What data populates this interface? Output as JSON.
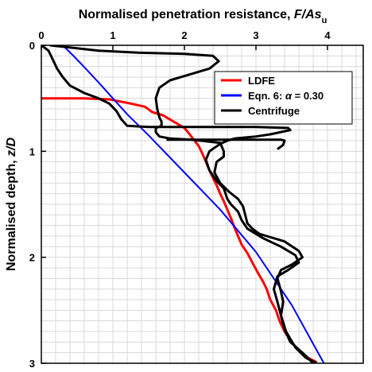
{
  "chart_data": {
    "type": "line",
    "title": "Normalised penetration resistance, F/As",
    "title_subscript": "u",
    "xlabel": "Normalised penetration resistance, F/As",
    "xlabel_subscript": "u",
    "ylabel": "Normalised depth, z/D",
    "x_axis_position": "top",
    "y_axis_inverted": true,
    "xlim": [
      0,
      4.5
    ],
    "ylim": [
      0,
      3
    ],
    "x_ticks": [
      0,
      1,
      2,
      3,
      4
    ],
    "y_ticks": [
      0,
      1,
      2,
      3
    ],
    "grid": true,
    "legend_placement": "top-right",
    "series": [
      {
        "name": "LDFE",
        "color": "#ff0000",
        "points": [
          [
            0.0,
            0.5
          ],
          [
            0.6,
            0.5
          ],
          [
            0.95,
            0.51
          ],
          [
            1.25,
            0.55
          ],
          [
            1.45,
            0.58
          ],
          [
            1.55,
            0.63
          ],
          [
            1.7,
            0.66
          ],
          [
            1.8,
            0.7
          ],
          [
            1.9,
            0.74
          ],
          [
            2.0,
            0.78
          ],
          [
            2.05,
            0.82
          ],
          [
            2.12,
            0.88
          ],
          [
            2.2,
            0.95
          ],
          [
            2.25,
            1.02
          ],
          [
            2.3,
            1.1
          ],
          [
            2.35,
            1.18
          ],
          [
            2.4,
            1.25
          ],
          [
            2.45,
            1.32
          ],
          [
            2.5,
            1.4
          ],
          [
            2.55,
            1.47
          ],
          [
            2.6,
            1.55
          ],
          [
            2.65,
            1.63
          ],
          [
            2.7,
            1.72
          ],
          [
            2.75,
            1.8
          ],
          [
            2.8,
            1.88
          ],
          [
            2.88,
            1.96
          ],
          [
            2.95,
            2.05
          ],
          [
            3.03,
            2.15
          ],
          [
            3.1,
            2.23
          ],
          [
            3.15,
            2.3
          ],
          [
            3.2,
            2.4
          ],
          [
            3.28,
            2.5
          ],
          [
            3.33,
            2.6
          ],
          [
            3.4,
            2.7
          ],
          [
            3.5,
            2.8
          ],
          [
            3.6,
            2.88
          ],
          [
            3.73,
            2.95
          ],
          [
            3.85,
            2.99
          ]
        ]
      },
      {
        "name": "Eqn. 6: α = 0.30",
        "label_var": "α",
        "label_prefix": "Eqn. 6: ",
        "label_suffix": " = 0.30",
        "color": "#0000ff",
        "points": [
          [
            0.3,
            0.0
          ],
          [
            0.45,
            0.1
          ],
          [
            0.62,
            0.22
          ],
          [
            0.8,
            0.35
          ],
          [
            1.0,
            0.5
          ],
          [
            1.2,
            0.65
          ],
          [
            1.5,
            0.85
          ],
          [
            2.0,
            1.2
          ],
          [
            2.5,
            1.55
          ],
          [
            3.0,
            1.95
          ],
          [
            3.5,
            2.45
          ],
          [
            3.95,
            3.0
          ]
        ]
      },
      {
        "name": "Centrifuge",
        "color": "#000000",
        "points": [
          [
            0.12,
            0.0
          ],
          [
            0.4,
            0.02
          ],
          [
            0.8,
            0.05
          ],
          [
            1.35,
            0.07
          ],
          [
            2.0,
            0.08
          ],
          [
            2.4,
            0.1
          ],
          [
            2.48,
            0.15
          ],
          [
            2.35,
            0.22
          ],
          [
            2.05,
            0.28
          ],
          [
            1.8,
            0.33
          ],
          [
            1.65,
            0.4
          ],
          [
            1.6,
            0.5
          ],
          [
            1.62,
            0.6
          ],
          [
            1.65,
            0.68
          ],
          [
            1.68,
            0.72
          ],
          [
            1.68,
            0.76
          ],
          [
            1.6,
            0.78
          ],
          [
            1.6,
            0.82
          ],
          [
            1.65,
            0.86
          ],
          [
            1.8,
            0.88
          ],
          [
            2.1,
            0.89
          ],
          [
            2.5,
            0.92
          ],
          [
            2.55,
            1.0
          ],
          [
            2.55,
            1.05
          ],
          [
            2.45,
            1.1
          ],
          [
            2.42,
            1.2
          ],
          [
            2.5,
            1.3
          ],
          [
            2.62,
            1.38
          ],
          [
            2.75,
            1.45
          ],
          [
            2.82,
            1.52
          ],
          [
            2.85,
            1.6
          ],
          [
            2.88,
            1.68
          ],
          [
            2.95,
            1.73
          ],
          [
            3.05,
            1.78
          ],
          [
            3.15,
            1.8
          ],
          [
            3.4,
            1.85
          ],
          [
            3.6,
            1.94
          ],
          [
            3.65,
            2.0
          ],
          [
            3.5,
            2.07
          ],
          [
            3.35,
            2.12
          ],
          [
            3.3,
            2.2
          ],
          [
            3.35,
            2.32
          ],
          [
            3.38,
            2.42
          ],
          [
            3.35,
            2.55
          ],
          [
            3.4,
            2.68
          ],
          [
            3.48,
            2.8
          ],
          [
            3.65,
            2.9
          ],
          [
            3.8,
            3.0
          ]
        ]
      },
      {
        "name": "",
        "color": "#000000",
        "points": [
          [
            0.0,
            0.0
          ],
          [
            0.1,
            0.05
          ],
          [
            0.15,
            0.12
          ],
          [
            0.22,
            0.22
          ],
          [
            0.3,
            0.3
          ],
          [
            0.4,
            0.38
          ],
          [
            0.6,
            0.45
          ],
          [
            0.8,
            0.5
          ],
          [
            0.95,
            0.55
          ],
          [
            1.05,
            0.62
          ],
          [
            1.12,
            0.7
          ],
          [
            1.2,
            0.76
          ],
          [
            1.5,
            0.77
          ],
          [
            2.0,
            0.77
          ],
          [
            2.5,
            0.77
          ],
          [
            3.0,
            0.77
          ],
          [
            3.45,
            0.78
          ],
          [
            3.48,
            0.8
          ],
          [
            3.2,
            0.84
          ],
          [
            3.0,
            0.86
          ],
          [
            2.7,
            0.88
          ],
          [
            2.6,
            0.9
          ],
          [
            2.5,
            0.93
          ],
          [
            2.35,
            1.0
          ],
          [
            2.3,
            1.08
          ],
          [
            2.35,
            1.18
          ],
          [
            2.45,
            1.28
          ],
          [
            2.55,
            1.35
          ],
          [
            2.6,
            1.45
          ],
          [
            2.65,
            1.5
          ],
          [
            2.75,
            1.57
          ],
          [
            2.8,
            1.65
          ],
          [
            2.88,
            1.73
          ],
          [
            3.1,
            1.82
          ],
          [
            3.35,
            1.9
          ],
          [
            3.55,
            1.98
          ],
          [
            3.6,
            2.05
          ],
          [
            3.45,
            2.12
          ],
          [
            3.3,
            2.18
          ],
          [
            3.25,
            2.3
          ],
          [
            3.3,
            2.42
          ],
          [
            3.35,
            2.55
          ],
          [
            3.42,
            2.7
          ],
          [
            3.55,
            2.85
          ],
          [
            3.7,
            2.95
          ],
          [
            3.85,
            3.0
          ]
        ]
      },
      {
        "name": "",
        "color": "#000000",
        "points": [
          [
            1.75,
            0.89
          ],
          [
            2.2,
            0.89
          ],
          [
            2.8,
            0.89
          ],
          [
            3.35,
            0.89
          ],
          [
            3.4,
            0.9
          ],
          [
            3.38,
            0.94
          ],
          [
            3.3,
            0.98
          ]
        ]
      }
    ]
  }
}
